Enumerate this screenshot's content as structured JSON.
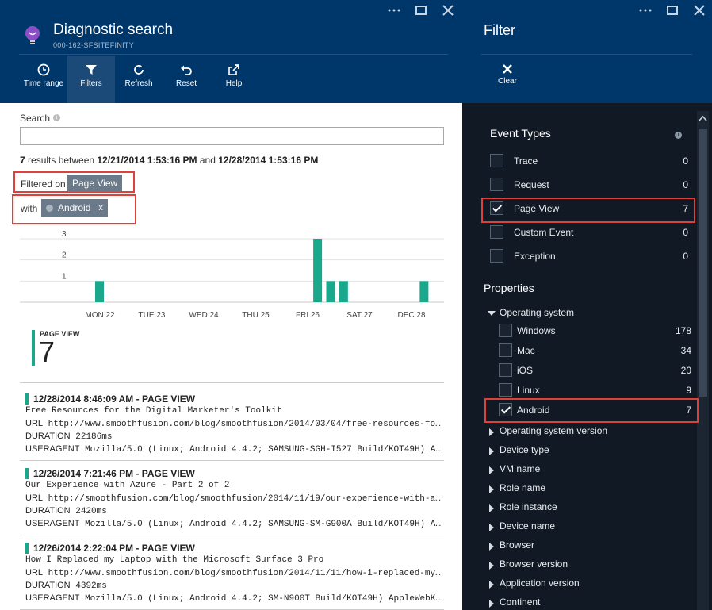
{
  "left_blade": {
    "title": "Diagnostic search",
    "subtitle": "000-162-SFSITEFINITY",
    "toolbar": [
      {
        "label": "Time range",
        "icon": "clock-icon"
      },
      {
        "label": "Filters",
        "icon": "filter-icon"
      },
      {
        "label": "Refresh",
        "icon": "refresh-icon"
      },
      {
        "label": "Reset",
        "icon": "undo-icon"
      },
      {
        "label": "Help",
        "icon": "external-link-icon"
      }
    ],
    "search": {
      "label": "Search",
      "value": "",
      "placeholder": ""
    },
    "results": {
      "count": "7",
      "text_between": "results between",
      "start": "12/21/2014 1:53:16 PM",
      "text_and": "and",
      "end": "12/28/2014 1:53:16 PM"
    },
    "filtered_on": {
      "label": "Filtered on",
      "chip": "Page View"
    },
    "with_filter": {
      "label": "with",
      "chip": "Android",
      "remove": "x"
    },
    "page_view": {
      "label": "PAGE VIEW",
      "count": "7"
    },
    "events": [
      {
        "title": "12/28/2014 8:46:09 AM - PAGE VIEW",
        "name": "Free Resources for the Digital Marketer's Toolkit",
        "url_key": "URL",
        "url": "http://www.smoothfusion.com/blog/smoothfusion/2014/03/04/free-resources-fo...",
        "duration_key": "DURATION",
        "duration": "22186ms",
        "ua_key": "USERAGENT",
        "ua": "Mozilla/5.0 (Linux; Android 4.4.2; SAMSUNG-SGH-I527 Build/KOT49H) Ap..."
      },
      {
        "title": "12/26/2014 7:21:46 PM - PAGE VIEW",
        "name": "Our Experience with Azure - Part 2 of 2",
        "url_key": "URL",
        "url": "http://smoothfusion.com/blog/smoothfusion/2014/11/19/our-experience-with-a...",
        "duration_key": "DURATION",
        "duration": "2420ms",
        "ua_key": "USERAGENT",
        "ua": "Mozilla/5.0 (Linux; Android 4.4.2; SAMSUNG-SM-G900A Build/KOT49H) Ap..."
      },
      {
        "title": "12/26/2014 2:22:04 PM - PAGE VIEW",
        "name": "How I Replaced my Laptop with the Microsoft Surface 3 Pro",
        "url_key": "URL",
        "url": "http://www.smoothfusion.com/blog/smoothfusion/2014/11/11/how-i-replaced-my...",
        "duration_key": "DURATION",
        "duration": "4392ms",
        "ua_key": "USERAGENT",
        "ua": "Mozilla/5.0 (Linux; Android 4.4.2; SM-N900T Build/KOT49H) AppleWebKi..."
      }
    ]
  },
  "chart_data": {
    "type": "bar",
    "x_tick_labels": [
      "MON 22",
      "TUE 23",
      "WED 24",
      "THU 25",
      "FRI 26",
      "SAT 27",
      "DEC 28"
    ],
    "y_tick_labels": [
      "1",
      "2",
      "3"
    ],
    "ylim": [
      0,
      3.3
    ],
    "bar_color": "#19a88c",
    "bars": [
      {
        "time": "MON 22",
        "offset_days": 0.0,
        "value": 1
      },
      {
        "time": "FRI 26",
        "offset_days": 4.2,
        "value": 3
      },
      {
        "time": "FRI 26",
        "offset_days": 4.45,
        "value": 1
      },
      {
        "time": "FRI 26",
        "offset_days": 4.7,
        "value": 1
      },
      {
        "time": "DEC 28",
        "offset_days": 6.25,
        "value": 1
      }
    ]
  },
  "filter_blade": {
    "title": "Filter",
    "clear_label": "Clear",
    "event_types": {
      "title": "Event Types",
      "items": [
        {
          "label": "Trace",
          "count": "0",
          "checked": false
        },
        {
          "label": "Request",
          "count": "0",
          "checked": false
        },
        {
          "label": "Page View",
          "count": "7",
          "checked": true
        },
        {
          "label": "Custom Event",
          "count": "0",
          "checked": false
        },
        {
          "label": "Exception",
          "count": "0",
          "checked": false
        }
      ]
    },
    "properties": {
      "title": "Properties",
      "os": {
        "label": "Operating system",
        "items": [
          {
            "label": "Windows",
            "count": "178",
            "checked": false
          },
          {
            "label": "Mac",
            "count": "34",
            "checked": false
          },
          {
            "label": "iOS",
            "count": "20",
            "checked": false
          },
          {
            "label": "Linux",
            "count": "9",
            "checked": false
          },
          {
            "label": "Android",
            "count": "7",
            "checked": true
          }
        ]
      },
      "collapsed": [
        "Operating system version",
        "Device type",
        "VM name",
        "Role name",
        "Role instance",
        "Device name",
        "Browser",
        "Browser version",
        "Application version",
        "Continent"
      ]
    }
  },
  "colors": {
    "header": "#00376b",
    "accent": "#19a88c",
    "highlight": "#e0403a",
    "dark_panel": "#111a24"
  }
}
